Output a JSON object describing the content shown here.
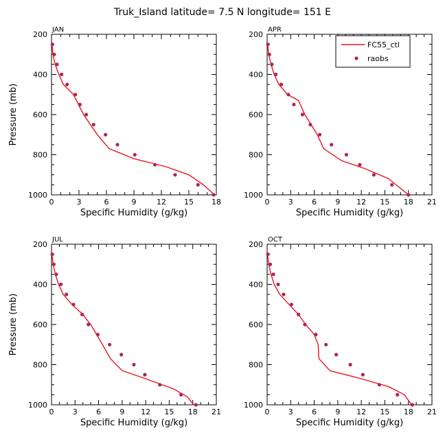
{
  "page_title": "Truk_Island  latitude= 7.5 N longitude= 151 E",
  "colors": {
    "model": "#e8141c",
    "obs": "#b0245a",
    "axis": "#000000"
  },
  "chart_data": [
    {
      "type": "line",
      "panel_label": "JAN",
      "xlabel": "Specific Humidity (g/kg)",
      "ylabel": "Pressure (mb)",
      "xlim": [
        0,
        18
      ],
      "ylim": [
        200,
        1000
      ],
      "y_inverted": true,
      "xticks": [
        "0",
        "3",
        "6",
        "9",
        "12",
        "15",
        "18"
      ],
      "yticks": [
        "200",
        "400",
        "600",
        "800",
        "1000"
      ],
      "legend": null,
      "series": [
        {
          "kind": "line",
          "x": [
            0.05,
            0.15,
            0.4,
            0.8,
            1.3,
            2.4,
            3.5,
            5.0,
            6.3,
            9.0,
            12.5,
            15.0,
            16.6,
            17.8
          ],
          "y": [
            250,
            300,
            350,
            400,
            450,
            500,
            600,
            700,
            770,
            820,
            860,
            900,
            950,
            1000
          ]
        },
        {
          "kind": "points",
          "x": [
            0.1,
            0.3,
            0.6,
            1.1,
            1.7,
            2.6,
            3.1,
            3.8,
            4.6,
            5.9,
            7.2,
            9.1,
            11.3,
            13.5,
            16.0,
            17.7
          ],
          "y": [
            250,
            300,
            350,
            400,
            450,
            500,
            550,
            600,
            650,
            700,
            750,
            800,
            850,
            900,
            950,
            1000
          ]
        }
      ]
    },
    {
      "type": "line",
      "panel_label": "APR",
      "xlabel": "Specific Humidity (g/kg)",
      "ylabel": "",
      "xlim": [
        0,
        21
      ],
      "ylim": [
        200,
        1000
      ],
      "y_inverted": true,
      "xticks": [
        "0",
        "3",
        "6",
        "9",
        "12",
        "15",
        "18",
        "21"
      ],
      "yticks": [
        "200",
        "400",
        "600",
        "800",
        "1000"
      ],
      "legend": {
        "position": "top-right",
        "entries": [
          "FC55_ctl",
          "raobs"
        ]
      },
      "series": [
        {
          "name": "FC55_ctl",
          "kind": "line",
          "x": [
            0.05,
            0.2,
            0.5,
            0.9,
            1.5,
            2.6,
            4.0,
            4.8,
            5.6,
            6.4,
            7.2,
            9.5,
            12.5,
            15.5,
            18.0
          ],
          "y": [
            250,
            300,
            350,
            400,
            450,
            500,
            530,
            600,
            650,
            700,
            770,
            830,
            870,
            920,
            1000
          ]
        },
        {
          "name": "raobs",
          "kind": "points",
          "x": [
            0.1,
            0.3,
            0.6,
            1.1,
            1.8,
            2.7,
            3.4,
            4.5,
            5.5,
            6.7,
            8.2,
            10.1,
            11.8,
            13.6,
            15.9,
            18.0
          ],
          "y": [
            250,
            300,
            350,
            400,
            450,
            500,
            550,
            600,
            650,
            700,
            750,
            800,
            850,
            900,
            950,
            1000
          ]
        }
      ]
    },
    {
      "type": "line",
      "panel_label": "JUL",
      "xlabel": "Specific Humidity (g/kg)",
      "ylabel": "Pressure (mb)",
      "xlim": [
        0,
        21
      ],
      "ylim": [
        200,
        1000
      ],
      "y_inverted": true,
      "xticks": [
        "0",
        "3",
        "6",
        "9",
        "12",
        "15",
        "18",
        "21"
      ],
      "yticks": [
        "200",
        "400",
        "600",
        "800",
        "1000"
      ],
      "legend": null,
      "series": [
        {
          "kind": "line",
          "x": [
            0.05,
            0.2,
            0.5,
            0.9,
            1.5,
            2.6,
            4.0,
            5.0,
            6.5,
            7.5,
            9.0,
            12.0,
            15.5,
            17.3,
            18.1
          ],
          "y": [
            250,
            300,
            350,
            400,
            450,
            500,
            550,
            600,
            700,
            770,
            830,
            870,
            920,
            960,
            1000
          ]
        },
        {
          "kind": "points",
          "x": [
            0.1,
            0.3,
            0.6,
            1.2,
            1.9,
            2.8,
            3.9,
            4.7,
            5.9,
            7.4,
            8.9,
            10.5,
            11.9,
            13.8,
            16.5,
            18.4
          ],
          "y": [
            250,
            300,
            350,
            400,
            450,
            500,
            550,
            600,
            650,
            700,
            750,
            800,
            850,
            900,
            950,
            1000
          ]
        }
      ]
    },
    {
      "type": "line",
      "panel_label": "OCT",
      "xlabel": "Specific Humidity (g/kg)",
      "ylabel": "",
      "xlim": [
        0,
        21
      ],
      "ylim": [
        200,
        1000
      ],
      "y_inverted": true,
      "xticks": [
        "0",
        "3",
        "6",
        "9",
        "12",
        "15",
        "18",
        "21"
      ],
      "yticks": [
        "200",
        "400",
        "600",
        "800",
        "1000"
      ],
      "legend": null,
      "series": [
        {
          "kind": "line",
          "x": [
            0.05,
            0.2,
            0.5,
            0.9,
            1.6,
            2.8,
            4.0,
            4.9,
            6.0,
            6.5,
            6.6,
            8.0,
            12.0,
            15.5,
            17.5,
            18.4
          ],
          "y": [
            250,
            300,
            350,
            400,
            450,
            500,
            550,
            600,
            650,
            700,
            770,
            830,
            870,
            910,
            950,
            1000
          ]
        },
        {
          "kind": "points",
          "x": [
            0.1,
            0.4,
            0.8,
            1.4,
            2.1,
            3.1,
            4.0,
            4.8,
            6.2,
            7.5,
            8.8,
            10.6,
            12.2,
            14.3,
            16.6,
            18.5
          ],
          "y": [
            250,
            300,
            350,
            400,
            450,
            500,
            550,
            600,
            650,
            700,
            750,
            800,
            850,
            900,
            950,
            1000
          ]
        }
      ]
    }
  ]
}
